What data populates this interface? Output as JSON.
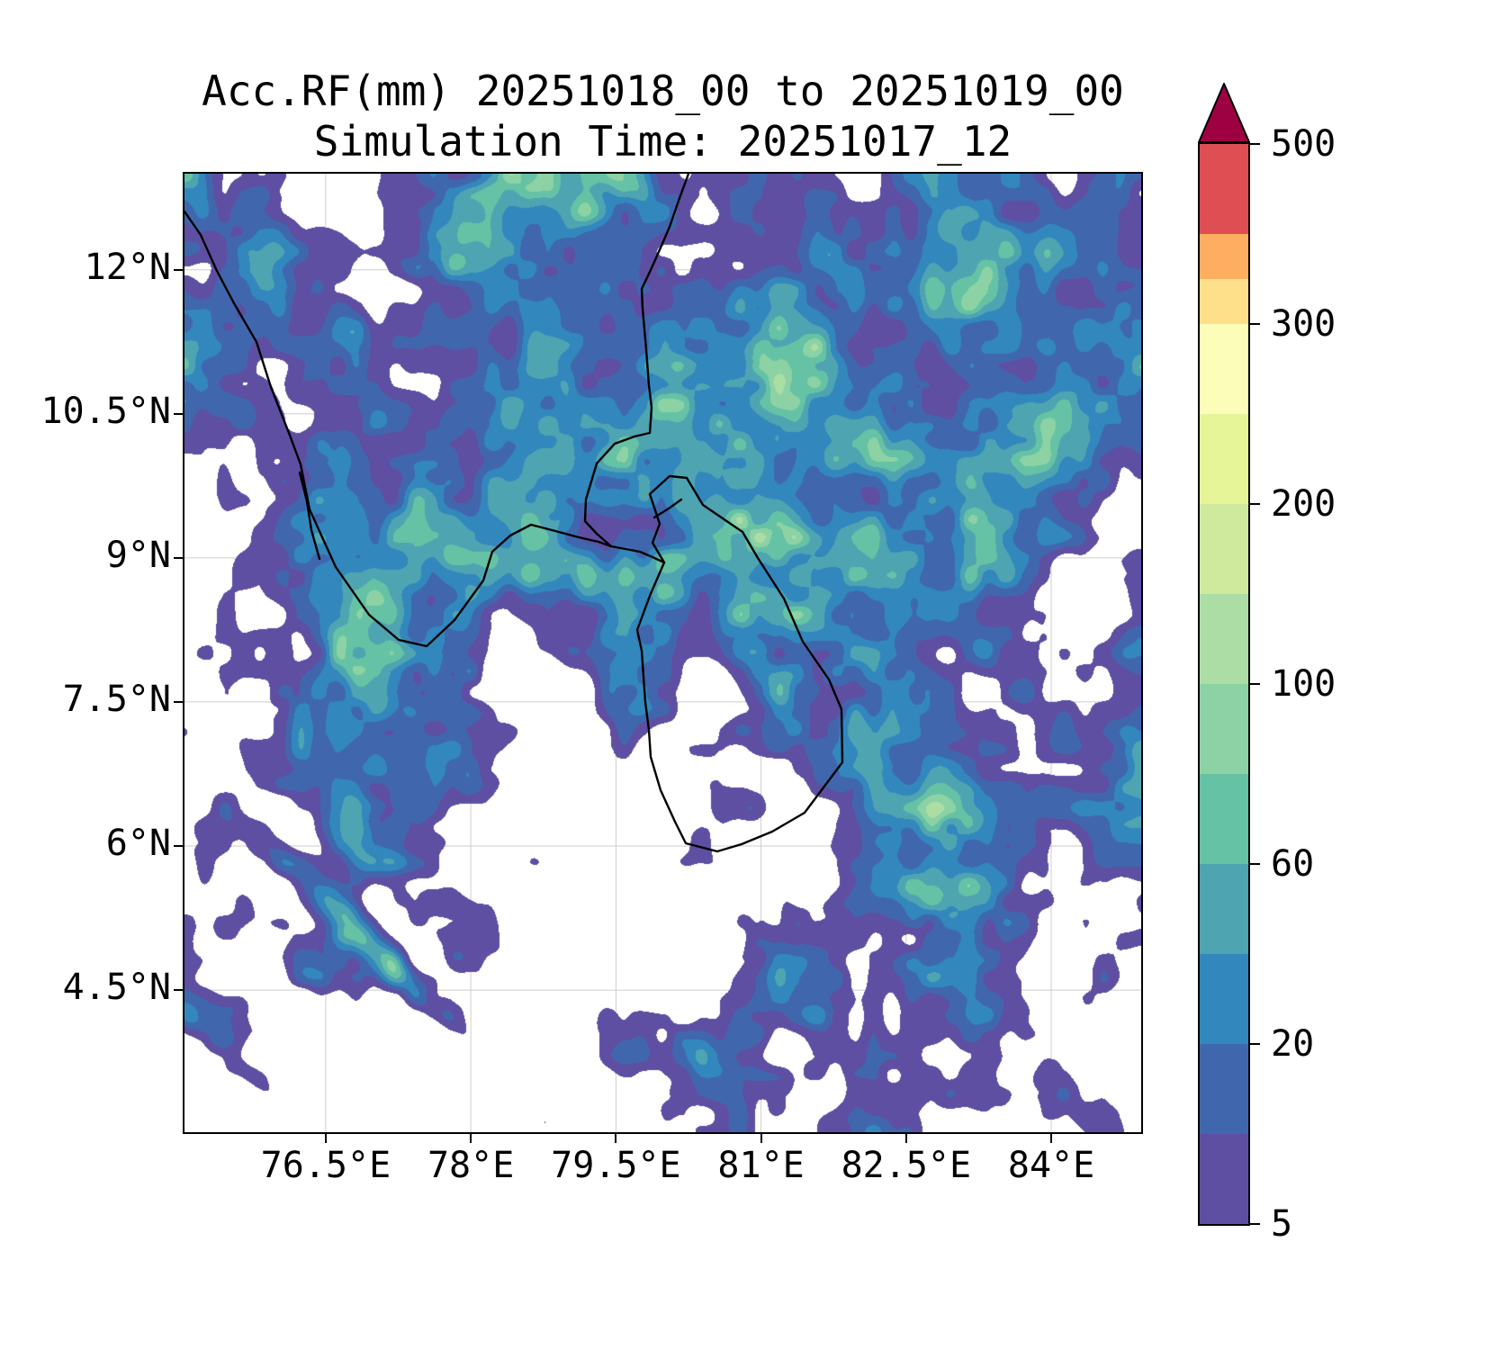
{
  "title": {
    "line1": "Acc.RF(mm) 20251018_00 to 20251019_00",
    "line2": "Simulation Time: 20251017_12"
  },
  "axes": {
    "lon_min": 75.04,
    "lon_max": 84.93,
    "lat_min": 3.02,
    "lat_max": 13.0,
    "x_ticks": [
      {
        "label": "76.5°E",
        "lon": 76.5
      },
      {
        "label": "78°E",
        "lon": 78.0
      },
      {
        "label": "79.5°E",
        "lon": 79.5
      },
      {
        "label": "81°E",
        "lon": 81.0
      },
      {
        "label": "82.5°E",
        "lon": 82.5
      },
      {
        "label": "84°E",
        "lon": 84.0
      }
    ],
    "y_ticks": [
      {
        "label": "12°N",
        "lat": 12.0
      },
      {
        "label": "10.5°N",
        "lat": 10.5
      },
      {
        "label": "9°N",
        "lat": 9.0
      },
      {
        "label": "7.5°N",
        "lat": 7.5
      },
      {
        "label": "6°N",
        "lat": 6.0
      },
      {
        "label": "4.5°N",
        "lat": 4.5
      }
    ]
  },
  "colorbar": {
    "unit": "mm",
    "tick_values": [
      500,
      300,
      200,
      100,
      60,
      20,
      5
    ],
    "over_color": "#9e0142",
    "segments": [
      {
        "from": 5,
        "to": 10,
        "color": "#5e4fa2",
        "units": 2
      },
      {
        "from": 10,
        "to": 20,
        "color": "#4067ae",
        "units": 2
      },
      {
        "from": 20,
        "to": 40,
        "color": "#3288bd",
        "units": 2
      },
      {
        "from": 40,
        "to": 60,
        "color": "#4fa4b2",
        "units": 2
      },
      {
        "from": 60,
        "to": 80,
        "color": "#66c2a5",
        "units": 2
      },
      {
        "from": 80,
        "to": 100,
        "color": "#8dd2a4",
        "units": 2
      },
      {
        "from": 100,
        "to": 150,
        "color": "#abdda4",
        "units": 2
      },
      {
        "from": 150,
        "to": 200,
        "color": "#cfe99d",
        "units": 2
      },
      {
        "from": 200,
        "to": 250,
        "color": "#e6f598",
        "units": 2
      },
      {
        "from": 250,
        "to": 300,
        "color": "#fbfdb8",
        "units": 2
      },
      {
        "from": 300,
        "to": 350,
        "color": "#fee08b",
        "units": 1
      },
      {
        "from": 350,
        "to": 400,
        "color": "#fdae61",
        "units": 1
      },
      {
        "from": 400,
        "to": 500,
        "color": "#df4e52",
        "units": 2
      }
    ]
  },
  "chart_data": {
    "type": "heatmap",
    "title": "Acc.RF(mm) 20251018_00 to 20251019_00",
    "subtitle": "Simulation Time: 20251017_12",
    "variable": "24-h accumulated rainfall (mm), filled contours over map with coastlines",
    "x_tick_labels": [
      "76.5°E",
      "78°E",
      "79.5°E",
      "81°E",
      "82.5°E",
      "84°E"
    ],
    "y_tick_labels": [
      "12°N",
      "10.5°N",
      "9°N",
      "7.5°N",
      "6°N",
      "4.5°N"
    ],
    "lon_range": [
      75.0,
      85.0
    ],
    "lat_range": [
      3.0,
      13.0
    ],
    "contour_levels_mm": [
      5,
      10,
      20,
      40,
      60,
      80,
      100,
      150,
      200,
      250,
      300,
      350,
      400,
      500
    ],
    "colormap": "Spectral_r (purple = low, dark red = >500), below 5 mm left white",
    "colorbar_tick_labels": [
      500,
      300,
      200,
      100,
      60,
      20,
      5
    ],
    "legend_position": "right vertical colorbar with over-arrow",
    "grid": true,
    "field_summary": [
      "Widespread 5-60 mm (purple/blue) over most of the domain",
      "Embedded 60-150 mm (teal/green) cells over the northwest land area, central and eastern Sri Lanka, and the ocean southeast of Sri Lanka",
      "Mostly dry (<5 mm) streaky bands in the southwest quadrant",
      "Dry gaps in the Gulf of Mannar, south of Sri Lanka and patches in the east"
    ]
  }
}
